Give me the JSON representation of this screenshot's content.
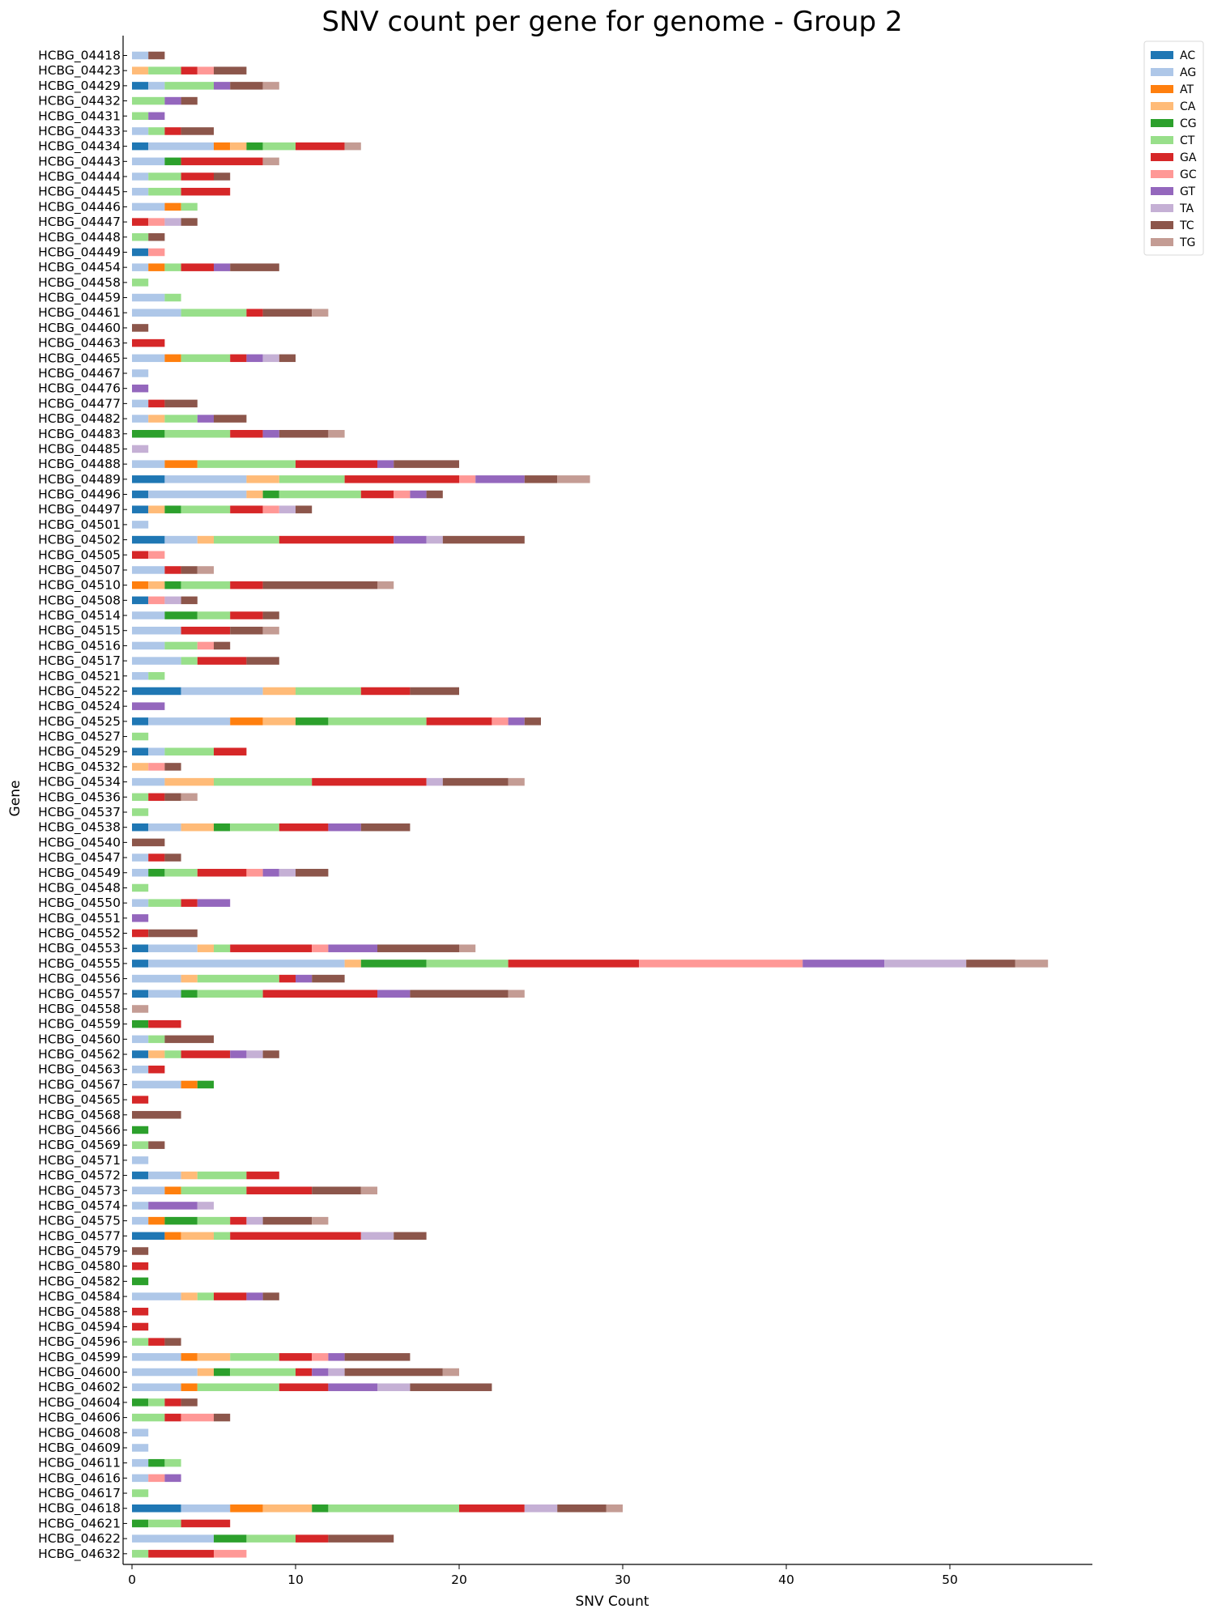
{
  "chart_data": {
    "type": "bar",
    "orientation": "horizontal",
    "stacked": true,
    "title": "SNV count per gene for genome - Group 2",
    "xlabel": "SNV Count",
    "ylabel": "Gene",
    "xlim": [
      0,
      58
    ],
    "xticks": [
      0,
      10,
      20,
      30,
      40,
      50
    ],
    "grid": false,
    "legend_position": "outside-top-right",
    "series_names": [
      "AC",
      "AG",
      "AT",
      "CA",
      "CG",
      "CT",
      "GA",
      "GC",
      "GT",
      "TA",
      "TC",
      "TG"
    ],
    "colors": {
      "AC": "#1f77b4",
      "AG": "#aec7e8",
      "AT": "#ff7f0e",
      "CA": "#ffbb78",
      "CG": "#2ca02c",
      "CT": "#98df8a",
      "GA": "#d62728",
      "GC": "#ff9896",
      "GT": "#9467bd",
      "TA": "#c5b0d5",
      "TC": "#8c564b",
      "TG": "#c49c94"
    },
    "categories": [
      "HCBG_04418",
      "HCBG_04423",
      "HCBG_04429",
      "HCBG_04432",
      "HCBG_04431",
      "HCBG_04433",
      "HCBG_04434",
      "HCBG_04443",
      "HCBG_04444",
      "HCBG_04445",
      "HCBG_04446",
      "HCBG_04447",
      "HCBG_04448",
      "HCBG_04449",
      "HCBG_04454",
      "HCBG_04458",
      "HCBG_04459",
      "HCBG_04461",
      "HCBG_04460",
      "HCBG_04463",
      "HCBG_04465",
      "HCBG_04467",
      "HCBG_04476",
      "HCBG_04477",
      "HCBG_04482",
      "HCBG_04483",
      "HCBG_04485",
      "HCBG_04488",
      "HCBG_04489",
      "HCBG_04496",
      "HCBG_04497",
      "HCBG_04501",
      "HCBG_04502",
      "HCBG_04505",
      "HCBG_04507",
      "HCBG_04510",
      "HCBG_04508",
      "HCBG_04514",
      "HCBG_04515",
      "HCBG_04516",
      "HCBG_04517",
      "HCBG_04521",
      "HCBG_04522",
      "HCBG_04524",
      "HCBG_04525",
      "HCBG_04527",
      "HCBG_04529",
      "HCBG_04532",
      "HCBG_04534",
      "HCBG_04536",
      "HCBG_04537",
      "HCBG_04538",
      "HCBG_04540",
      "HCBG_04547",
      "HCBG_04549",
      "HCBG_04548",
      "HCBG_04550",
      "HCBG_04551",
      "HCBG_04552",
      "HCBG_04553",
      "HCBG_04555",
      "HCBG_04556",
      "HCBG_04557",
      "HCBG_04558",
      "HCBG_04559",
      "HCBG_04560",
      "HCBG_04562",
      "HCBG_04563",
      "HCBG_04567",
      "HCBG_04565",
      "HCBG_04568",
      "HCBG_04566",
      "HCBG_04569",
      "HCBG_04571",
      "HCBG_04572",
      "HCBG_04573",
      "HCBG_04574",
      "HCBG_04575",
      "HCBG_04577",
      "HCBG_04579",
      "HCBG_04580",
      "HCBG_04582",
      "HCBG_04584",
      "HCBG_04588",
      "HCBG_04594",
      "HCBG_04596",
      "HCBG_04599",
      "HCBG_04600",
      "HCBG_04602",
      "HCBG_04604",
      "HCBG_04606",
      "HCBG_04608",
      "HCBG_04609",
      "HCBG_04611",
      "HCBG_04616",
      "HCBG_04617",
      "HCBG_04618",
      "HCBG_04621",
      "HCBG_04622",
      "HCBG_04632"
    ],
    "values": [
      [
        0,
        1,
        0,
        0,
        0,
        0,
        0,
        0,
        0,
        0,
        1,
        0
      ],
      [
        0,
        0,
        0,
        1,
        0,
        2,
        1,
        1,
        0,
        0,
        2,
        0
      ],
      [
        1,
        1,
        0,
        0,
        0,
        3,
        0,
        0,
        1,
        0,
        2,
        1
      ],
      [
        0,
        0,
        0,
        0,
        0,
        2,
        0,
        0,
        1,
        0,
        1,
        0
      ],
      [
        0,
        0,
        0,
        0,
        0,
        1,
        0,
        0,
        1,
        0,
        0,
        0
      ],
      [
        0,
        1,
        0,
        0,
        0,
        1,
        1,
        0,
        0,
        0,
        2,
        0
      ],
      [
        1,
        4,
        1,
        1,
        1,
        2,
        3,
        0,
        0,
        0,
        0,
        1
      ],
      [
        0,
        2,
        0,
        0,
        1,
        0,
        5,
        0,
        0,
        0,
        0,
        1
      ],
      [
        0,
        1,
        0,
        0,
        0,
        2,
        2,
        0,
        0,
        0,
        1,
        0
      ],
      [
        0,
        1,
        0,
        0,
        0,
        2,
        3,
        0,
        0,
        0,
        0,
        0
      ],
      [
        0,
        2,
        1,
        0,
        0,
        1,
        0,
        0,
        0,
        0,
        0,
        0
      ],
      [
        0,
        0,
        0,
        0,
        0,
        0,
        1,
        1,
        0,
        1,
        1,
        0
      ],
      [
        0,
        0,
        0,
        0,
        0,
        1,
        0,
        0,
        0,
        0,
        1,
        0
      ],
      [
        1,
        0,
        0,
        0,
        0,
        0,
        0,
        1,
        0,
        0,
        0,
        0
      ],
      [
        0,
        1,
        1,
        0,
        0,
        1,
        2,
        0,
        1,
        0,
        3,
        0
      ],
      [
        0,
        0,
        0,
        0,
        0,
        1,
        0,
        0,
        0,
        0,
        0,
        0
      ],
      [
        0,
        2,
        0,
        0,
        0,
        1,
        0,
        0,
        0,
        0,
        0,
        0
      ],
      [
        0,
        3,
        0,
        0,
        0,
        4,
        1,
        0,
        0,
        0,
        3,
        1
      ],
      [
        0,
        0,
        0,
        0,
        0,
        0,
        0,
        0,
        0,
        0,
        1,
        0
      ],
      [
        0,
        0,
        0,
        0,
        0,
        0,
        2,
        0,
        0,
        0,
        0,
        0
      ],
      [
        0,
        2,
        1,
        0,
        0,
        3,
        1,
        0,
        1,
        1,
        1,
        0
      ],
      [
        0,
        1,
        0,
        0,
        0,
        0,
        0,
        0,
        0,
        0,
        0,
        0
      ],
      [
        0,
        0,
        0,
        0,
        0,
        0,
        0,
        0,
        1,
        0,
        0,
        0
      ],
      [
        0,
        1,
        0,
        0,
        0,
        0,
        1,
        0,
        0,
        0,
        2,
        0
      ],
      [
        0,
        1,
        0,
        1,
        0,
        2,
        0,
        0,
        1,
        0,
        2,
        0
      ],
      [
        0,
        0,
        0,
        0,
        2,
        4,
        2,
        0,
        1,
        0,
        3,
        1
      ],
      [
        0,
        0,
        0,
        0,
        0,
        0,
        0,
        0,
        0,
        1,
        0,
        0
      ],
      [
        0,
        2,
        2,
        0,
        0,
        6,
        5,
        0,
        1,
        0,
        4,
        0
      ],
      [
        2,
        5,
        0,
        2,
        0,
        4,
        7,
        1,
        3,
        0,
        2,
        2
      ],
      [
        1,
        6,
        0,
        1,
        1,
        5,
        2,
        1,
        1,
        0,
        1,
        0
      ],
      [
        1,
        0,
        0,
        1,
        1,
        3,
        2,
        1,
        0,
        1,
        1,
        0
      ],
      [
        0,
        1,
        0,
        0,
        0,
        0,
        0,
        0,
        0,
        0,
        0,
        0
      ],
      [
        2,
        2,
        0,
        1,
        0,
        4,
        7,
        0,
        2,
        1,
        5,
        0
      ],
      [
        0,
        0,
        0,
        0,
        0,
        0,
        1,
        1,
        0,
        0,
        0,
        0
      ],
      [
        0,
        2,
        0,
        0,
        0,
        0,
        1,
        0,
        0,
        0,
        1,
        1
      ],
      [
        0,
        0,
        1,
        1,
        1,
        3,
        2,
        0,
        0,
        0,
        7,
        1
      ],
      [
        1,
        0,
        0,
        0,
        0,
        0,
        0,
        1,
        0,
        1,
        1,
        0
      ],
      [
        0,
        2,
        0,
        0,
        2,
        2,
        2,
        0,
        0,
        0,
        1,
        0
      ],
      [
        0,
        3,
        0,
        0,
        0,
        0,
        3,
        0,
        0,
        0,
        2,
        1
      ],
      [
        0,
        2,
        0,
        0,
        0,
        2,
        0,
        1,
        0,
        0,
        1,
        0
      ],
      [
        0,
        3,
        0,
        0,
        0,
        1,
        3,
        0,
        0,
        0,
        2,
        0
      ],
      [
        0,
        1,
        0,
        0,
        0,
        1,
        0,
        0,
        0,
        0,
        0,
        0
      ],
      [
        3,
        5,
        0,
        2,
        0,
        4,
        3,
        0,
        0,
        0,
        3,
        0
      ],
      [
        0,
        0,
        0,
        0,
        0,
        0,
        0,
        0,
        2,
        0,
        0,
        0
      ],
      [
        1,
        5,
        2,
        2,
        2,
        6,
        4,
        1,
        1,
        0,
        1,
        0
      ],
      [
        0,
        0,
        0,
        0,
        0,
        1,
        0,
        0,
        0,
        0,
        0,
        0
      ],
      [
        1,
        1,
        0,
        0,
        0,
        3,
        2,
        0,
        0,
        0,
        0,
        0
      ],
      [
        0,
        0,
        0,
        1,
        0,
        0,
        0,
        1,
        0,
        0,
        1,
        0
      ],
      [
        0,
        2,
        0,
        3,
        0,
        6,
        7,
        0,
        0,
        1,
        4,
        1
      ],
      [
        0,
        0,
        0,
        0,
        0,
        1,
        1,
        0,
        0,
        0,
        1,
        1
      ],
      [
        0,
        0,
        0,
        0,
        0,
        1,
        0,
        0,
        0,
        0,
        0,
        0
      ],
      [
        1,
        2,
        0,
        2,
        1,
        3,
        3,
        0,
        2,
        0,
        3,
        0
      ],
      [
        0,
        0,
        0,
        0,
        0,
        0,
        0,
        0,
        0,
        0,
        2,
        0
      ],
      [
        0,
        1,
        0,
        0,
        0,
        0,
        1,
        0,
        0,
        0,
        1,
        0
      ],
      [
        0,
        1,
        0,
        0,
        1,
        2,
        3,
        1,
        1,
        1,
        2,
        0
      ],
      [
        0,
        0,
        0,
        0,
        0,
        1,
        0,
        0,
        0,
        0,
        0,
        0
      ],
      [
        0,
        1,
        0,
        0,
        0,
        2,
        1,
        0,
        2,
        0,
        0,
        0
      ],
      [
        0,
        0,
        0,
        0,
        0,
        0,
        0,
        0,
        1,
        0,
        0,
        0
      ],
      [
        0,
        0,
        0,
        0,
        0,
        0,
        1,
        0,
        0,
        0,
        3,
        0
      ],
      [
        1,
        3,
        0,
        1,
        0,
        1,
        5,
        1,
        3,
        0,
        5,
        1
      ],
      [
        1,
        12,
        0,
        1,
        4,
        5,
        8,
        10,
        5,
        5,
        3,
        2
      ],
      [
        0,
        3,
        0,
        1,
        0,
        5,
        1,
        0,
        1,
        0,
        2,
        0
      ],
      [
        1,
        2,
        0,
        0,
        1,
        4,
        7,
        0,
        2,
        0,
        6,
        1
      ],
      [
        0,
        0,
        0,
        0,
        0,
        0,
        0,
        0,
        0,
        0,
        0,
        1
      ],
      [
        0,
        0,
        0,
        0,
        1,
        0,
        2,
        0,
        0,
        0,
        0,
        0
      ],
      [
        0,
        1,
        0,
        0,
        0,
        1,
        0,
        0,
        0,
        0,
        3,
        0
      ],
      [
        1,
        0,
        0,
        1,
        0,
        1,
        3,
        0,
        1,
        1,
        1,
        0
      ],
      [
        0,
        1,
        0,
        0,
        0,
        0,
        1,
        0,
        0,
        0,
        0,
        0
      ],
      [
        0,
        3,
        1,
        0,
        1,
        0,
        0,
        0,
        0,
        0,
        0,
        0
      ],
      [
        0,
        0,
        0,
        0,
        0,
        0,
        1,
        0,
        0,
        0,
        0,
        0
      ],
      [
        0,
        0,
        0,
        0,
        0,
        0,
        0,
        0,
        0,
        0,
        3,
        0
      ],
      [
        0,
        0,
        0,
        0,
        1,
        0,
        0,
        0,
        0,
        0,
        0,
        0
      ],
      [
        0,
        0,
        0,
        0,
        0,
        1,
        0,
        0,
        0,
        0,
        1,
        0
      ],
      [
        0,
        1,
        0,
        0,
        0,
        0,
        0,
        0,
        0,
        0,
        0,
        0
      ],
      [
        1,
        2,
        0,
        1,
        0,
        3,
        2,
        0,
        0,
        0,
        0,
        0
      ],
      [
        0,
        2,
        1,
        0,
        0,
        4,
        4,
        0,
        0,
        0,
        3,
        1
      ],
      [
        0,
        1,
        0,
        0,
        0,
        0,
        0,
        0,
        3,
        1,
        0,
        0
      ],
      [
        0,
        1,
        1,
        0,
        2,
        2,
        1,
        0,
        0,
        1,
        3,
        1
      ],
      [
        2,
        0,
        1,
        2,
        0,
        1,
        8,
        0,
        0,
        2,
        2,
        0
      ],
      [
        0,
        0,
        0,
        0,
        0,
        0,
        0,
        0,
        0,
        0,
        1,
        0
      ],
      [
        0,
        0,
        0,
        0,
        0,
        0,
        1,
        0,
        0,
        0,
        0,
        0
      ],
      [
        0,
        0,
        0,
        0,
        1,
        0,
        0,
        0,
        0,
        0,
        0,
        0
      ],
      [
        0,
        3,
        0,
        1,
        0,
        1,
        2,
        0,
        1,
        0,
        1,
        0
      ],
      [
        0,
        0,
        0,
        0,
        0,
        0,
        1,
        0,
        0,
        0,
        0,
        0
      ],
      [
        0,
        0,
        0,
        0,
        0,
        0,
        1,
        0,
        0,
        0,
        0,
        0
      ],
      [
        0,
        0,
        0,
        0,
        0,
        1,
        1,
        0,
        0,
        0,
        1,
        0
      ],
      [
        0,
        3,
        1,
        2,
        0,
        3,
        2,
        1,
        1,
        0,
        4,
        0
      ],
      [
        0,
        4,
        0,
        1,
        1,
        4,
        1,
        0,
        1,
        1,
        6,
        1
      ],
      [
        0,
        3,
        1,
        0,
        0,
        5,
        3,
        0,
        3,
        2,
        5,
        0
      ],
      [
        0,
        0,
        0,
        0,
        1,
        1,
        1,
        0,
        0,
        0,
        1,
        0
      ],
      [
        0,
        0,
        0,
        0,
        0,
        2,
        1,
        2,
        0,
        0,
        1,
        0
      ],
      [
        0,
        1,
        0,
        0,
        0,
        0,
        0,
        0,
        0,
        0,
        0,
        0
      ],
      [
        0,
        1,
        0,
        0,
        0,
        0,
        0,
        0,
        0,
        0,
        0,
        0
      ],
      [
        0,
        1,
        0,
        0,
        1,
        1,
        0,
        0,
        0,
        0,
        0,
        0
      ],
      [
        0,
        1,
        0,
        0,
        0,
        0,
        0,
        1,
        1,
        0,
        0,
        0
      ],
      [
        0,
        0,
        0,
        0,
        0,
        1,
        0,
        0,
        0,
        0,
        0,
        0
      ],
      [
        3,
        3,
        2,
        3,
        1,
        8,
        4,
        0,
        0,
        2,
        3,
        1
      ],
      [
        0,
        0,
        0,
        0,
        1,
        2,
        3,
        0,
        0,
        0,
        0,
        0
      ],
      [
        0,
        5,
        0,
        0,
        2,
        3,
        2,
        0,
        0,
        0,
        4,
        0
      ],
      [
        0,
        0,
        0,
        0,
        0,
        1,
        4,
        2,
        0,
        0,
        0,
        0
      ]
    ]
  }
}
